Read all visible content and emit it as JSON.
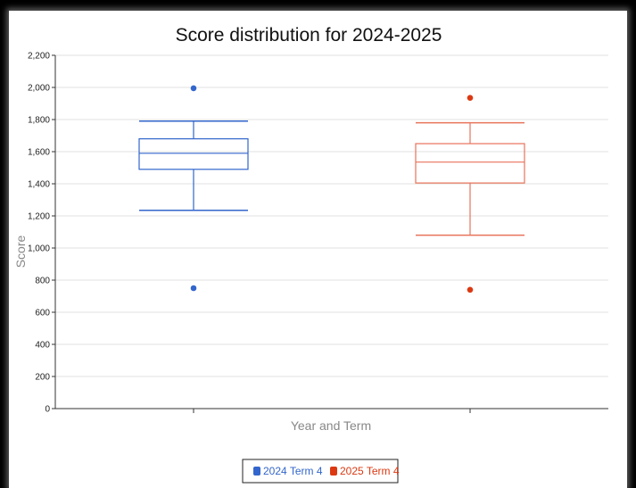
{
  "chart_data": {
    "type": "box",
    "title": "Score distribution for 2024-2025",
    "xlabel": "Year and Term",
    "ylabel": "Score",
    "ylim": [
      0,
      2200
    ],
    "yticks": [
      0,
      200,
      400,
      600,
      800,
      1000,
      1200,
      1400,
      1600,
      1800,
      2000,
      2200
    ],
    "ytick_labels": [
      "0",
      "200",
      "400",
      "600",
      "800",
      "1,000",
      "1,200",
      "1,400",
      "1,600",
      "1,800",
      "2,000",
      "2,200"
    ],
    "grid": true,
    "legend_position": "bottom",
    "series": [
      {
        "name": "2024 Term 4",
        "color": "#3366cc",
        "whisker_low": 1235,
        "q1": 1490,
        "median": 1590,
        "q3": 1680,
        "whisker_high": 1790,
        "outliers": [
          1995,
          750
        ]
      },
      {
        "name": "2025 Term 4",
        "color": "#dc3912",
        "box_color": "#e8735a",
        "whisker_low": 1080,
        "q1": 1405,
        "median": 1535,
        "q3": 1650,
        "whisker_high": 1780,
        "outliers": [
          1935,
          740
        ]
      }
    ]
  }
}
